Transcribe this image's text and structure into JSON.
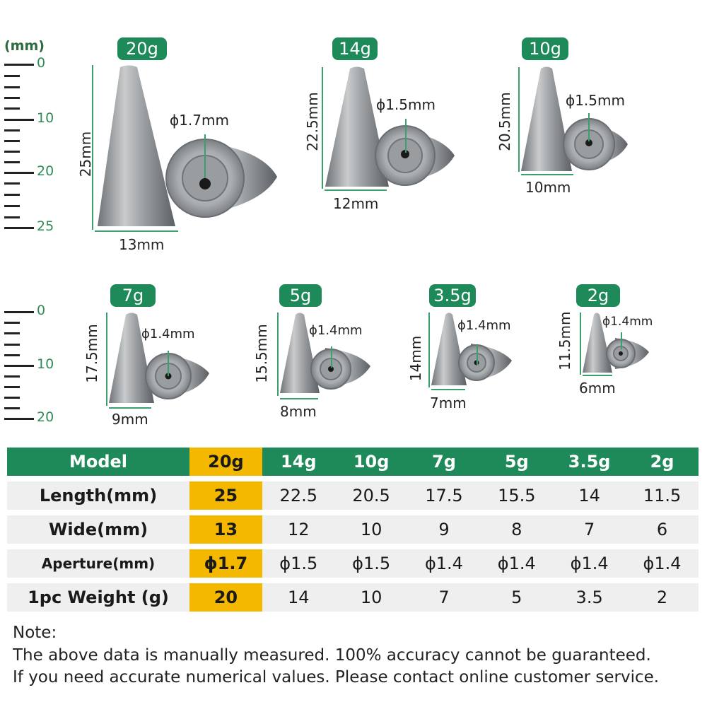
{
  "unit_label": "(mm)",
  "ruler_top": {
    "labels": [
      "0",
      "10",
      "20",
      "25"
    ]
  },
  "ruler_bottom": {
    "labels": [
      "0",
      "10",
      "20"
    ]
  },
  "sinkers": [
    {
      "badge": "20g",
      "height": "25mm",
      "width": "13mm",
      "aperture": "ϕ1.7mm"
    },
    {
      "badge": "14g",
      "height": "22.5mm",
      "width": "12mm",
      "aperture": "ϕ1.5mm"
    },
    {
      "badge": "10g",
      "height": "20.5mm",
      "width": "10mm",
      "aperture": "ϕ1.5mm"
    },
    {
      "badge": "7g",
      "height": "17.5mm",
      "width": "9mm",
      "aperture": "ϕ1.4mm"
    },
    {
      "badge": "5g",
      "height": "15.5mm",
      "width": "8mm",
      "aperture": "ϕ1.4mm"
    },
    {
      "badge": "3.5g",
      "height": "14mm",
      "width": "7mm",
      "aperture": "ϕ1.4mm"
    },
    {
      "badge": "2g",
      "height": "11.5mm",
      "width": "6mm",
      "aperture": "ϕ1.4mm"
    }
  ],
  "table": {
    "header": [
      "Model",
      "20g",
      "14g",
      "10g",
      "7g",
      "5g",
      "3.5g",
      "2g"
    ],
    "rows": [
      {
        "label": "Length(mm)",
        "values": [
          "25",
          "22.5",
          "20.5",
          "17.5",
          "15.5",
          "14",
          "11.5"
        ]
      },
      {
        "label": "Wide(mm)",
        "values": [
          "13",
          "12",
          "10",
          "9",
          "8",
          "7",
          "6"
        ]
      },
      {
        "label": "Aperture(mm)",
        "values": [
          "ϕ1.7",
          "ϕ1.5",
          "ϕ1.5",
          "ϕ1.4",
          "ϕ1.4",
          "ϕ1.4",
          "ϕ1.4"
        ]
      },
      {
        "label": "1pc Weight (g)",
        "values": [
          "20",
          "14",
          "10",
          "7",
          "5",
          "3.5",
          "2"
        ]
      }
    ]
  },
  "note": {
    "title": "Note:",
    "line1": "The above data is manually measured. 100% accuracy cannot be guaranteed.",
    "line2": "If you need accurate numerical values. Please contact online customer service."
  },
  "colors": {
    "green": "#1e8a5a",
    "highlight": "#f5b800",
    "row_bg": "#efefef"
  }
}
